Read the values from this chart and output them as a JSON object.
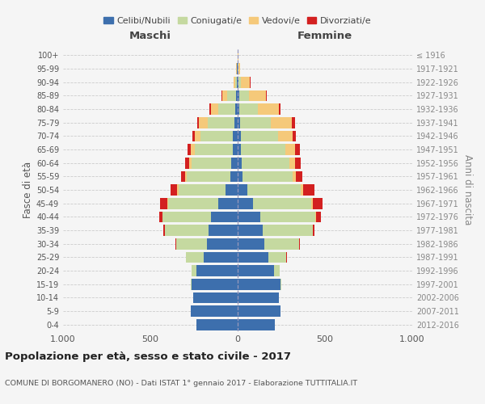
{
  "age_groups": [
    "0-4",
    "5-9",
    "10-14",
    "15-19",
    "20-24",
    "25-29",
    "30-34",
    "35-39",
    "40-44",
    "45-49",
    "50-54",
    "55-59",
    "60-64",
    "65-69",
    "70-74",
    "75-79",
    "80-84",
    "85-89",
    "90-94",
    "95-99",
    "100+"
  ],
  "birth_years": [
    "2012-2016",
    "2007-2011",
    "2002-2006",
    "1997-2001",
    "1992-1996",
    "1987-1991",
    "1982-1986",
    "1977-1981",
    "1972-1976",
    "1967-1971",
    "1962-1966",
    "1957-1961",
    "1952-1956",
    "1947-1951",
    "1942-1946",
    "1937-1941",
    "1932-1936",
    "1927-1931",
    "1922-1926",
    "1917-1921",
    "≤ 1916"
  ],
  "colors": {
    "celibi": "#3d6fad",
    "coniugati": "#c5d9a0",
    "vedovi": "#f5c97a",
    "divorziati": "#d32020"
  },
  "maschi": {
    "celibi": [
      235,
      270,
      255,
      265,
      235,
      195,
      175,
      165,
      155,
      110,
      70,
      40,
      35,
      30,
      30,
      20,
      15,
      10,
      5,
      3,
      2
    ],
    "coniugati": [
      0,
      0,
      0,
      5,
      30,
      100,
      175,
      250,
      275,
      290,
      270,
      250,
      230,
      215,
      185,
      150,
      95,
      50,
      10,
      2,
      0
    ],
    "vedovi": [
      0,
      0,
      0,
      0,
      0,
      0,
      1,
      1,
      2,
      5,
      5,
      10,
      15,
      25,
      30,
      50,
      45,
      30,
      10,
      2,
      0
    ],
    "divorziati": [
      0,
      0,
      0,
      0,
      0,
      2,
      5,
      10,
      18,
      40,
      40,
      22,
      22,
      18,
      15,
      10,
      5,
      2,
      0,
      0,
      0
    ]
  },
  "femmine": {
    "celibi": [
      215,
      245,
      235,
      245,
      210,
      175,
      155,
      145,
      130,
      90,
      55,
      30,
      25,
      20,
      18,
      12,
      10,
      8,
      5,
      2,
      2
    ],
    "coniugati": [
      0,
      0,
      0,
      5,
      30,
      105,
      195,
      285,
      315,
      330,
      305,
      285,
      270,
      255,
      215,
      180,
      105,
      55,
      15,
      3,
      0
    ],
    "vedovi": [
      0,
      0,
      0,
      0,
      0,
      0,
      1,
      2,
      5,
      10,
      15,
      20,
      35,
      55,
      80,
      120,
      120,
      100,
      50,
      8,
      2
    ],
    "divorziati": [
      0,
      0,
      0,
      0,
      0,
      2,
      5,
      10,
      25,
      55,
      65,
      35,
      30,
      25,
      20,
      15,
      10,
      5,
      2,
      0,
      0
    ]
  },
  "title": "Popolazione per età, sesso e stato civile - 2017",
  "subtitle": "COMUNE DI BORGOMANERO (NO) - Dati ISTAT 1° gennaio 2017 - Elaborazione TUTTITALIA.IT",
  "ylabel_left": "Fasce di età",
  "ylabel_right": "Anni di nascita",
  "xlabel_left": "Maschi",
  "xlabel_right": "Femmine",
  "xlim": 1000,
  "background_color": "#f5f5f5",
  "grid_color": "#cccccc",
  "legend_labels": [
    "Celibi/Nubili",
    "Coniugati/e",
    "Vedovi/e",
    "Divorziati/e"
  ]
}
